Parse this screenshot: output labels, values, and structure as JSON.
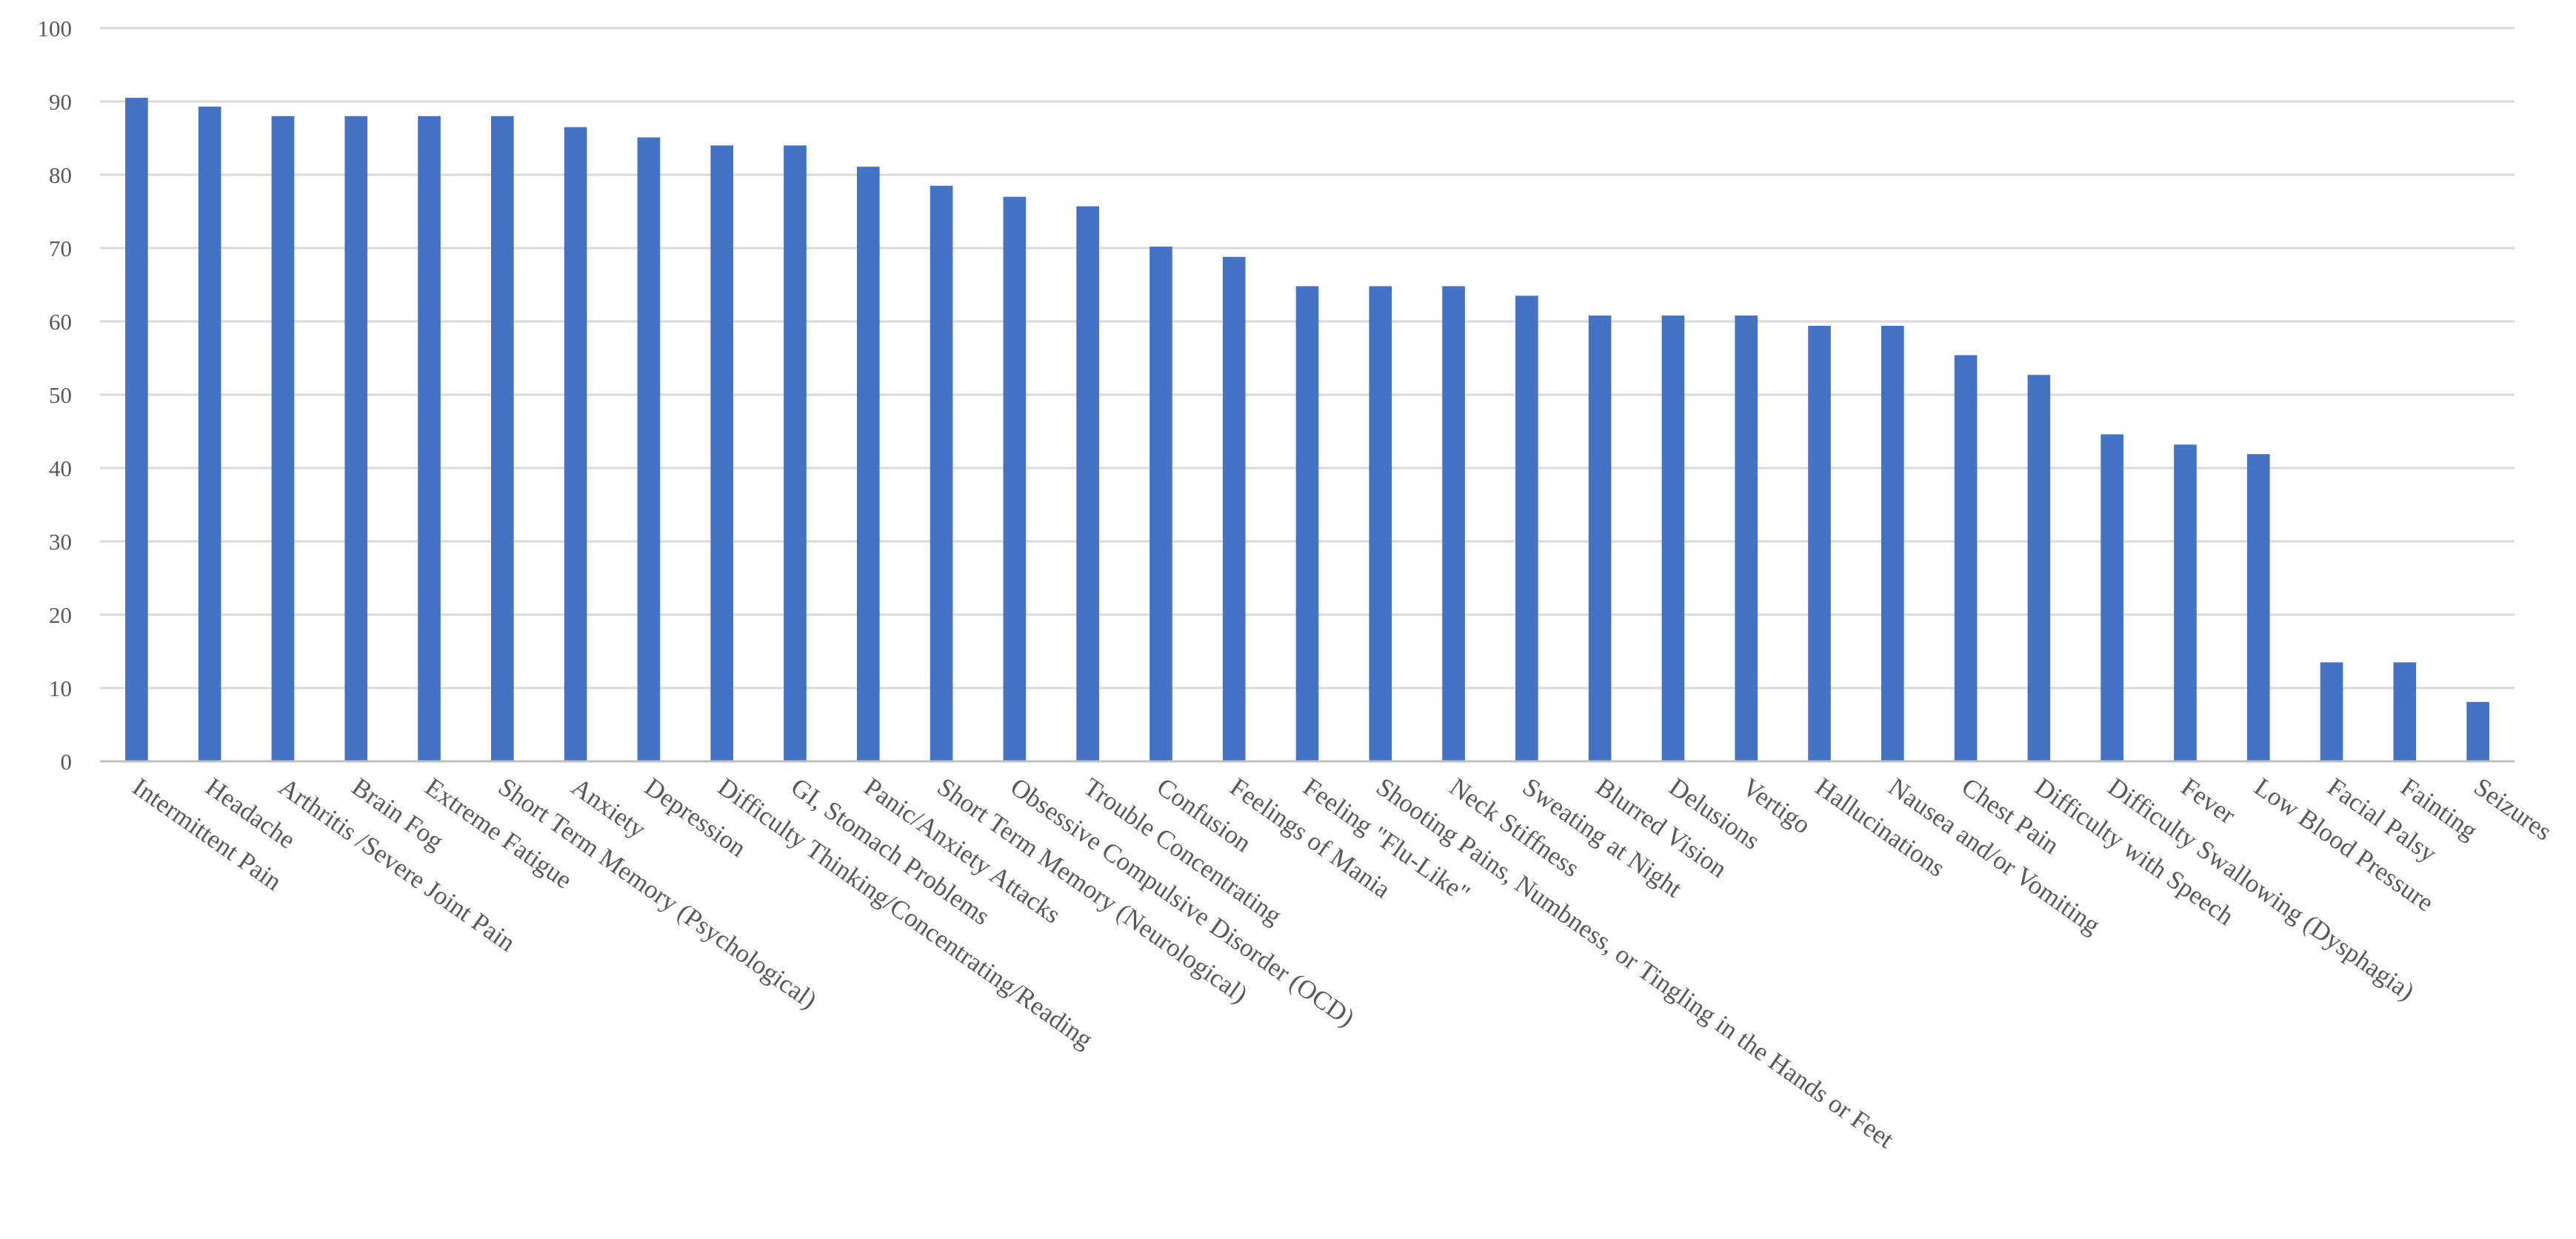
{
  "chart_data": {
    "type": "bar",
    "title": "",
    "xlabel": "",
    "ylabel": "",
    "ylim": [
      0,
      100
    ],
    "yticks": [
      0,
      10,
      20,
      30,
      40,
      50,
      60,
      70,
      80,
      90,
      100
    ],
    "grid": true,
    "legend": "none",
    "bar_color": "#4472C4",
    "categories": [
      "Intermittent Pain",
      "Headache",
      "Arthritis /Severe Joint Pain",
      "Brain Fog",
      "Extreme Fatigue",
      "Short Term Memory (Psychological)",
      "Anxiety",
      "Depression",
      "Difficulty Thinking/Concentrating/Reading",
      "GI, Stomach Problems",
      "Panic/Anxiety Attacks",
      "Short Term Memory (Neurological)",
      "Obsessive Compulsive Disorder (OCD)",
      "Trouble Concentrating",
      "Confusion",
      "Feelings of Mania",
      "Feeling \"Flu-Like\"",
      "Shooting Pains, Numbness, or Tingling in the Hands or Feet",
      "Neck Stiffness",
      "Sweating at Night",
      "Blurred Vision",
      "Delusions",
      "Vertigo",
      "Hallucinations",
      "Nausea and/or Vomiting",
      "Chest Pain",
      "Difficulty with Speech",
      "Difficulty Swallowing (Dysphagia)",
      "Fever",
      "Low Blood Pressure",
      "Facial Palsy",
      "Fainting",
      "Seizures"
    ],
    "values": [
      90.5,
      89.3,
      88,
      88,
      88,
      88,
      86.5,
      85.1,
      84,
      84,
      81.1,
      78.5,
      77,
      75.7,
      70.2,
      68.8,
      64.8,
      64.8,
      64.8,
      63.5,
      60.8,
      60.8,
      60.8,
      59.4,
      59.4,
      55.4,
      52.7,
      44.6,
      43.2,
      41.9,
      13.5,
      13.5,
      8.1
    ]
  }
}
